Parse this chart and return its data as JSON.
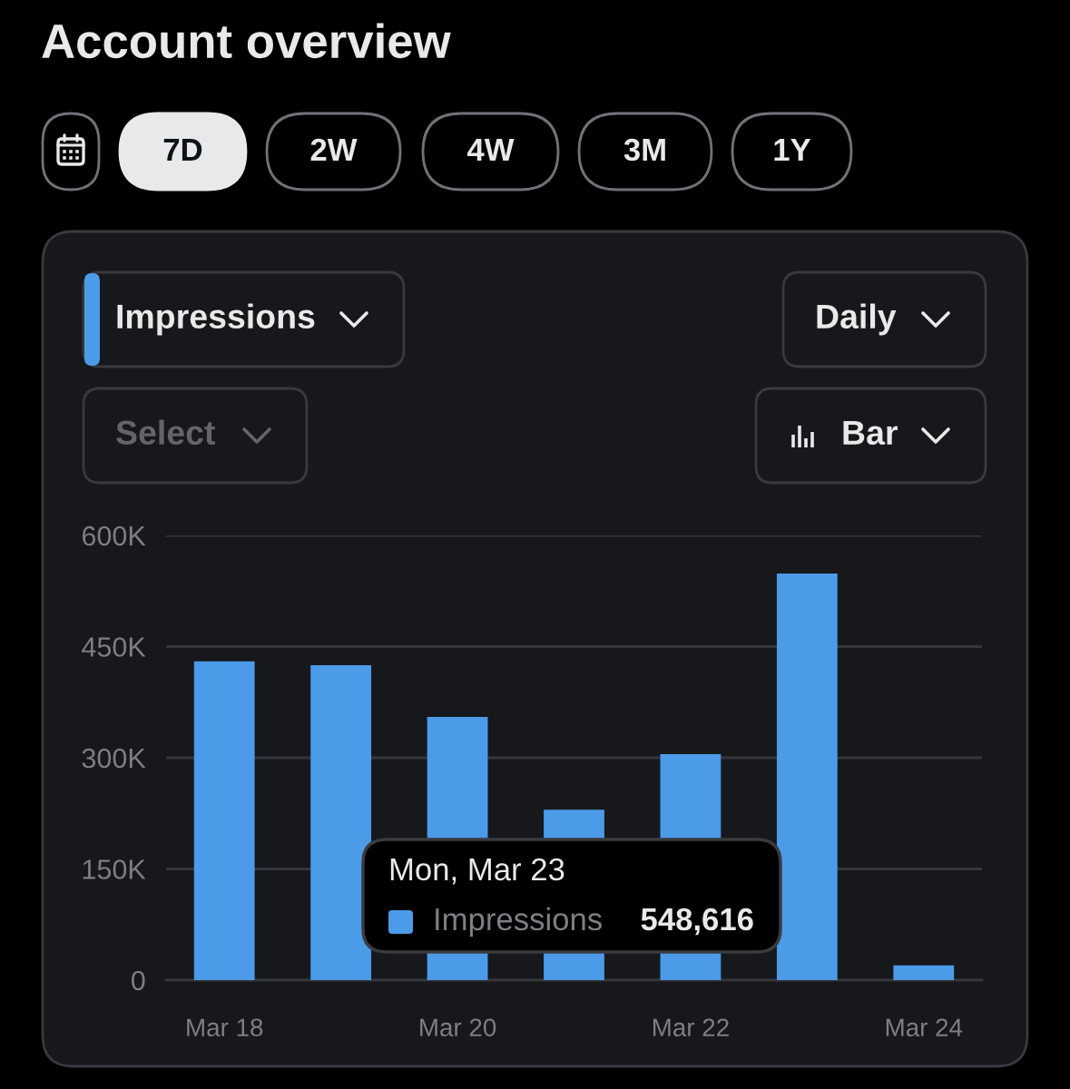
{
  "chart_data": {
    "type": "bar",
    "title": "Account overview",
    "categories": [
      "Mar 18",
      null,
      "Mar 20",
      null,
      "Mar 22",
      null,
      "Mar 24"
    ],
    "series": [
      {
        "name": "Impressions",
        "color": "#4c9be8",
        "values": [
          430000,
          425000,
          355000,
          230000,
          305000,
          548616,
          20000
        ]
      }
    ],
    "ylim": [
      0,
      600000
    ],
    "yticks": [
      0,
      {
        "value": 150000,
        "label": "150K"
      },
      {
        "value": 300000,
        "label": "300K"
      },
      {
        "value": 450000,
        "label": "450K"
      },
      {
        "value": 600000,
        "label": "600K"
      }
    ],
    "grid": "y",
    "legend": "bottom left",
    "annotations": [
      "7D",
      "2W",
      "4W",
      "3M",
      "1Y",
      "Daily",
      "Select",
      "Bar",
      "Mon, Mar 23",
      "548,616"
    ]
  }
}
